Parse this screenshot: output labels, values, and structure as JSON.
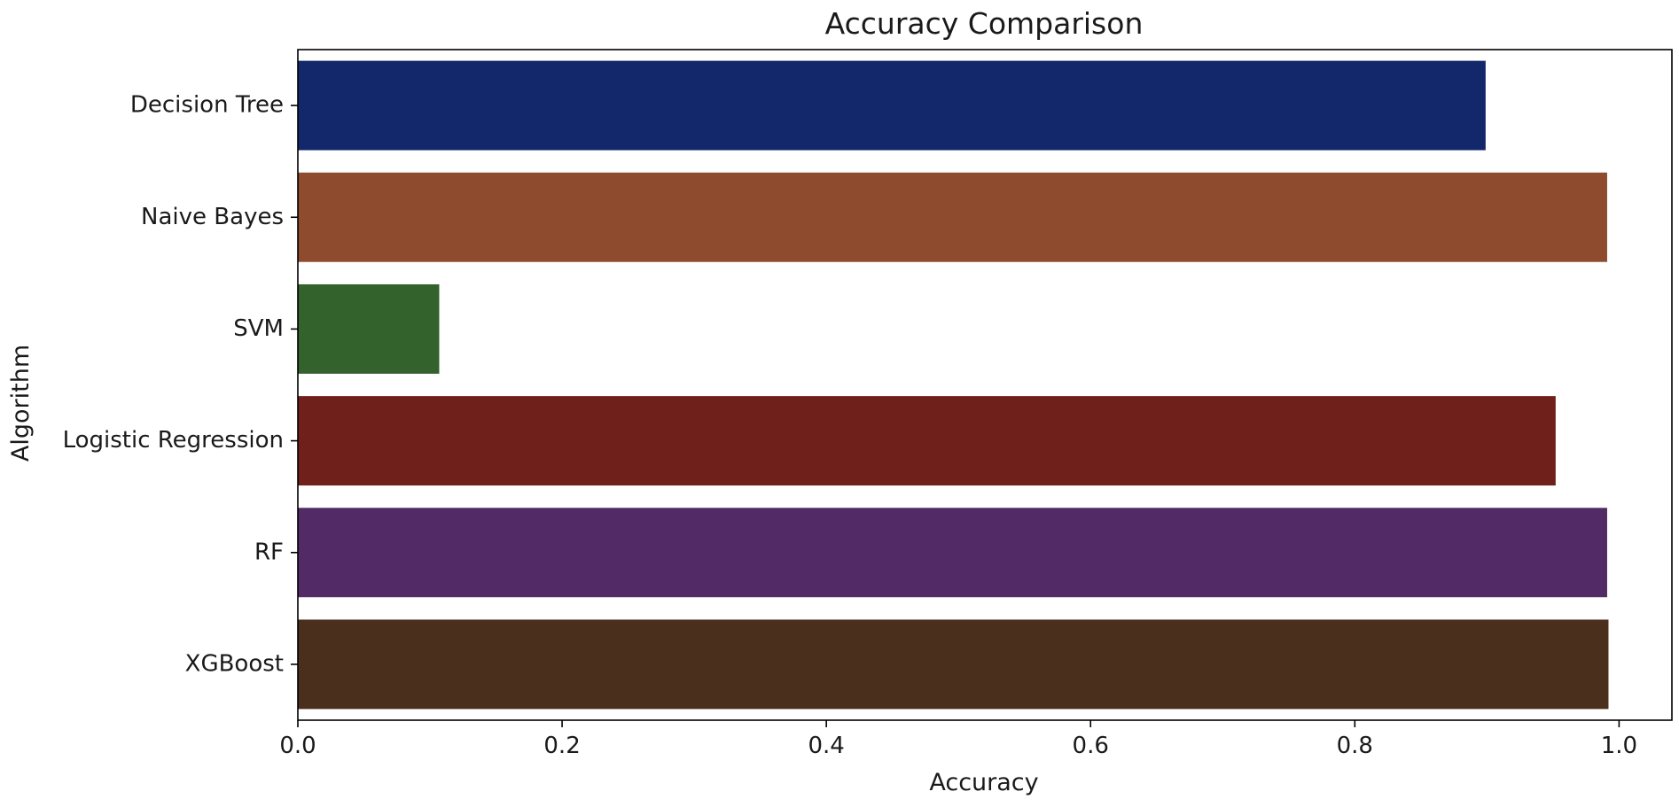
{
  "chart_data": {
    "type": "bar",
    "orientation": "horizontal",
    "title": "Accuracy Comparison",
    "xlabel": "Accuracy",
    "ylabel": "Algorithm",
    "xlim": [
      0.0,
      1.04
    ],
    "xticks": [
      0.0,
      0.2,
      0.4,
      0.6,
      0.8,
      1.0
    ],
    "xtick_labels": [
      "0.0",
      "0.2",
      "0.4",
      "0.6",
      "0.8",
      "1.0"
    ],
    "categories": [
      "Decision Tree",
      "Naive Bayes",
      "SVM",
      "Logistic Regression",
      "RF",
      "XGBoost"
    ],
    "values": [
      0.899,
      0.991,
      0.107,
      0.952,
      0.991,
      0.992
    ],
    "colors": [
      "#13276b",
      "#8e4b2d",
      "#33622d",
      "#6f201a",
      "#522b66",
      "#4b2f1d"
    ],
    "grid": false,
    "legend": false
  }
}
